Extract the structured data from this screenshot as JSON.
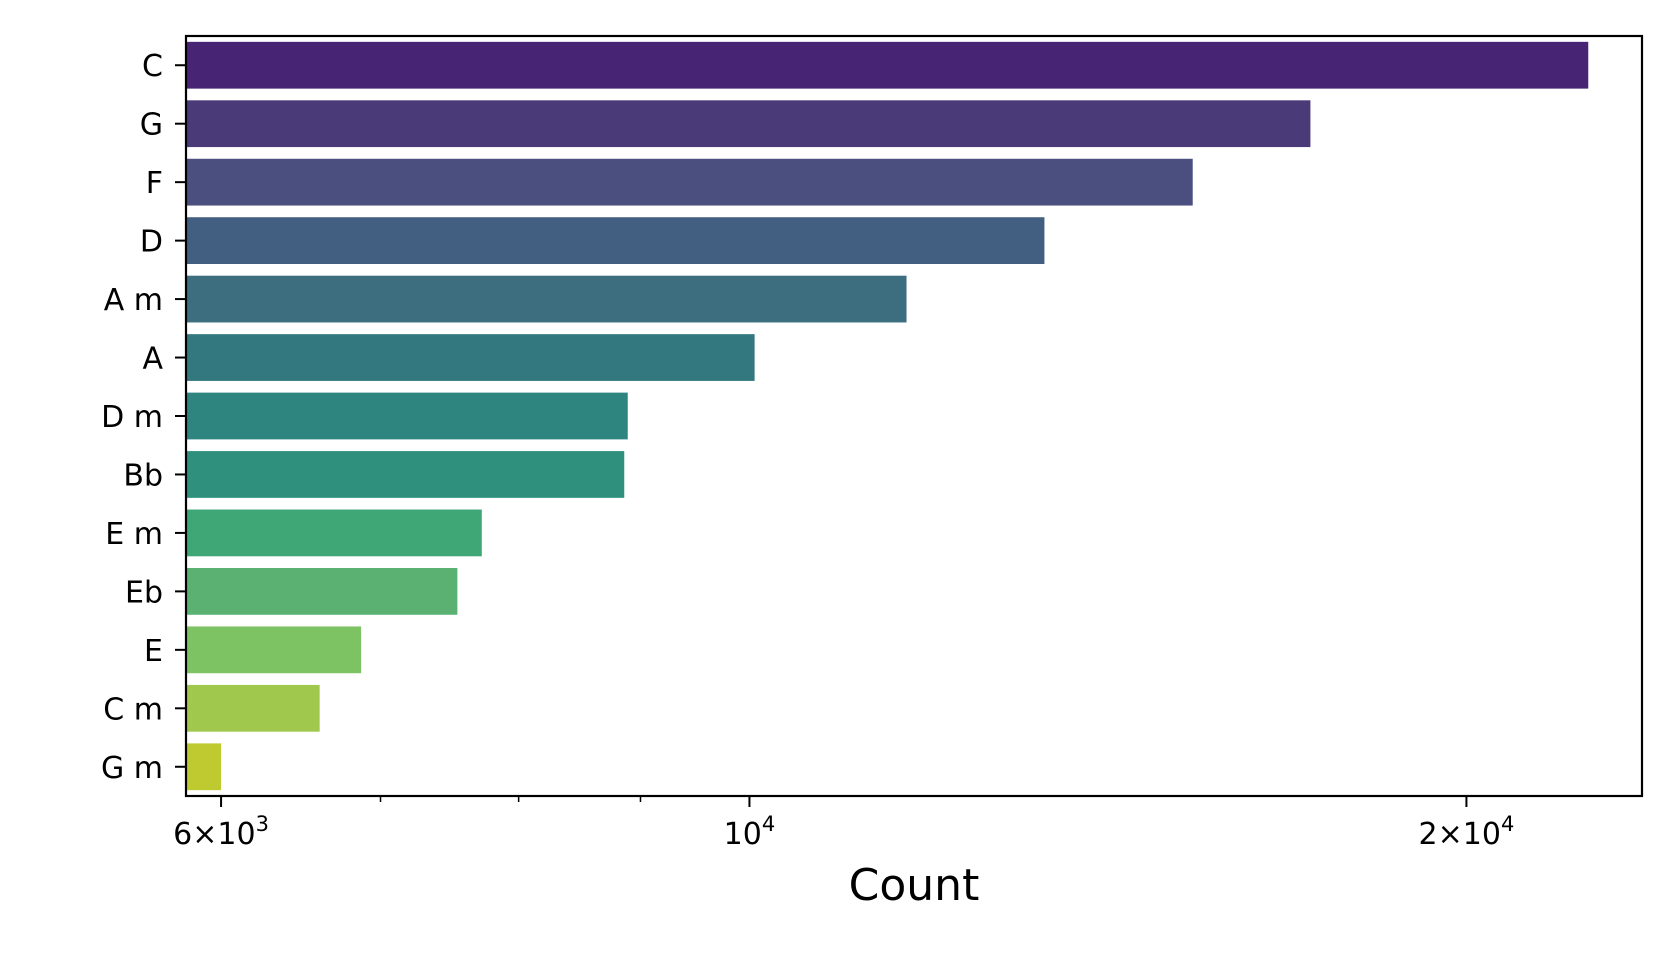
{
  "chart_data": {
    "type": "bar",
    "orientation": "horizontal",
    "xscale": "log",
    "xlabel": "Count",
    "ylabel": "",
    "title": "",
    "grid": false,
    "xlim": [
      5800,
      23700
    ],
    "categories": [
      "C",
      "G",
      "F",
      "D",
      "A m",
      "A",
      "D m",
      "Bb",
      "E m",
      "Eb",
      "E",
      "C m",
      "G m"
    ],
    "values": [
      22500,
      17200,
      15350,
      13300,
      11640,
      10050,
      8890,
      8860,
      7720,
      7540,
      6870,
      6600,
      6000
    ],
    "colors": [
      "#482475",
      "#4a3a78",
      "#4a4f7f",
      "#425f82",
      "#3c6e80",
      "#34787f",
      "#2e8580",
      "#2f917d",
      "#3fa676",
      "#5ab172",
      "#7dc364",
      "#9fc84c",
      "#bfc930"
    ],
    "major_ticks": [
      {
        "value": 6000,
        "mantissa": "6",
        "exponent": "3"
      },
      {
        "value": 10000,
        "mantissa": "",
        "exponent": "4"
      },
      {
        "value": 20000,
        "mantissa": "2",
        "exponent": "4"
      }
    ],
    "minor_ticks": [
      7000,
      8000,
      9000
    ]
  }
}
